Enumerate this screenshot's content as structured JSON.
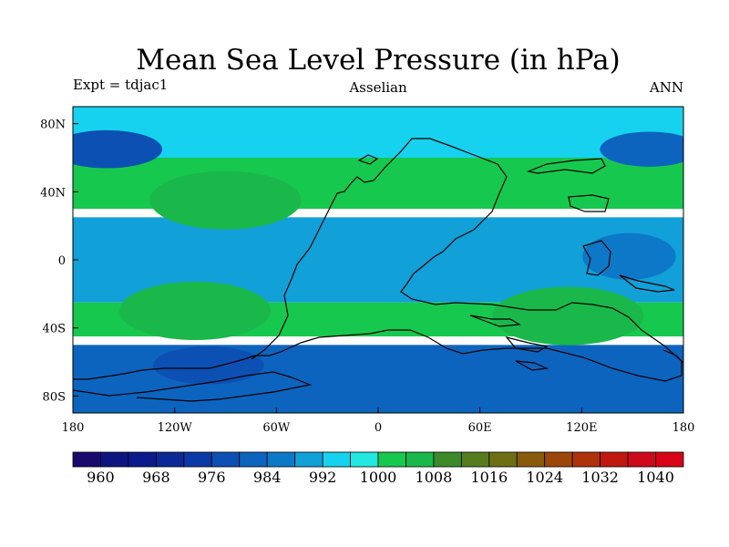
{
  "chart_data": {
    "type": "heatmap",
    "title": "Mean Sea Level Pressure (in hPa)",
    "subtitle_left": "Expt = tdjac1",
    "subtitle_center": "Asselian",
    "subtitle_right": "ANN",
    "units": "hPa",
    "x_axis": {
      "range": [
        -180,
        180
      ],
      "ticks": [
        {
          "value": -180,
          "label": "180"
        },
        {
          "value": -120,
          "label": "120W"
        },
        {
          "value": -60,
          "label": "60W"
        },
        {
          "value": 0,
          "label": "0"
        },
        {
          "value": 60,
          "label": "60E"
        },
        {
          "value": 120,
          "label": "120E"
        },
        {
          "value": 180,
          "label": "180"
        }
      ]
    },
    "y_axis": {
      "range": [
        -90,
        90
      ],
      "ticks": [
        {
          "value": 80,
          "label": "80N"
        },
        {
          "value": 40,
          "label": "40N"
        },
        {
          "value": 0,
          "label": "0"
        },
        {
          "value": -40,
          "label": "40S"
        },
        {
          "value": -80,
          "label": "80S"
        }
      ]
    },
    "colorbar": {
      "levels": [
        960,
        964,
        968,
        972,
        976,
        980,
        984,
        988,
        992,
        996,
        1000,
        1004,
        1008,
        1012,
        1016,
        1020,
        1024,
        1028,
        1032,
        1036,
        1040
      ],
      "colors": [
        "#1a0a6e",
        "#0d1480",
        "#0a1c8c",
        "#0a2896",
        "#0b3aa6",
        "#0c50b4",
        "#0c64be",
        "#0d78c8",
        "#12a0d8",
        "#16d2ee",
        "#22e8e0",
        "#17c84e",
        "#1ab84a",
        "#3d8a2a",
        "#567c1e",
        "#6e6e14",
        "#8a5a0c",
        "#9c460a",
        "#ae320a",
        "#c0180e",
        "#cc0a1a",
        "#d60416"
      ],
      "labels": [
        {
          "value": 960,
          "label": "960"
        },
        {
          "value": 968,
          "label": "968"
        },
        {
          "value": 976,
          "label": "976"
        },
        {
          "value": 984,
          "label": "984"
        },
        {
          "value": 992,
          "label": "992"
        },
        {
          "value": 1000,
          "label": "1000"
        },
        {
          "value": 1008,
          "label": "1008"
        },
        {
          "value": 1016,
          "label": "1016"
        },
        {
          "value": 1024,
          "label": "1024"
        },
        {
          "value": 1032,
          "label": "1032"
        },
        {
          "value": 1040,
          "label": "1040"
        }
      ]
    },
    "pressure_bands": [
      {
        "lat_range": [
          60,
          90
        ],
        "approx_hPa": 992,
        "description": "subpolar north"
      },
      {
        "lat_range": [
          30,
          60
        ],
        "approx_hPa": 1000,
        "description": "northern subtropics"
      },
      {
        "lat_range": [
          -25,
          25
        ],
        "approx_hPa": 988,
        "description": "equatorial low"
      },
      {
        "lat_range": [
          -45,
          -25
        ],
        "approx_hPa": 1000,
        "description": "southern subtropics"
      },
      {
        "lat_range": [
          -90,
          -50
        ],
        "approx_hPa": 980,
        "description": "southern circumpolar low"
      }
    ],
    "features": [
      {
        "kind": "high",
        "lon": -90,
        "lat": 35,
        "approx_hPa": 1004
      },
      {
        "kind": "high",
        "lon": -108,
        "lat": -30,
        "approx_hPa": 1004
      },
      {
        "kind": "high",
        "lon": 112,
        "lat": -33,
        "approx_hPa": 1004
      },
      {
        "kind": "low",
        "lon": -160,
        "lat": 65,
        "approx_hPa": 976
      },
      {
        "kind": "low",
        "lon": 160,
        "lat": 65,
        "approx_hPa": 980
      },
      {
        "kind": "low",
        "lon": 148,
        "lat": 2,
        "approx_hPa": 984
      },
      {
        "kind": "low",
        "lon": -100,
        "lat": -62,
        "approx_hPa": 976
      },
      {
        "kind": "low",
        "lon": 60,
        "lat": -70,
        "approx_hPa": 980
      }
    ]
  }
}
